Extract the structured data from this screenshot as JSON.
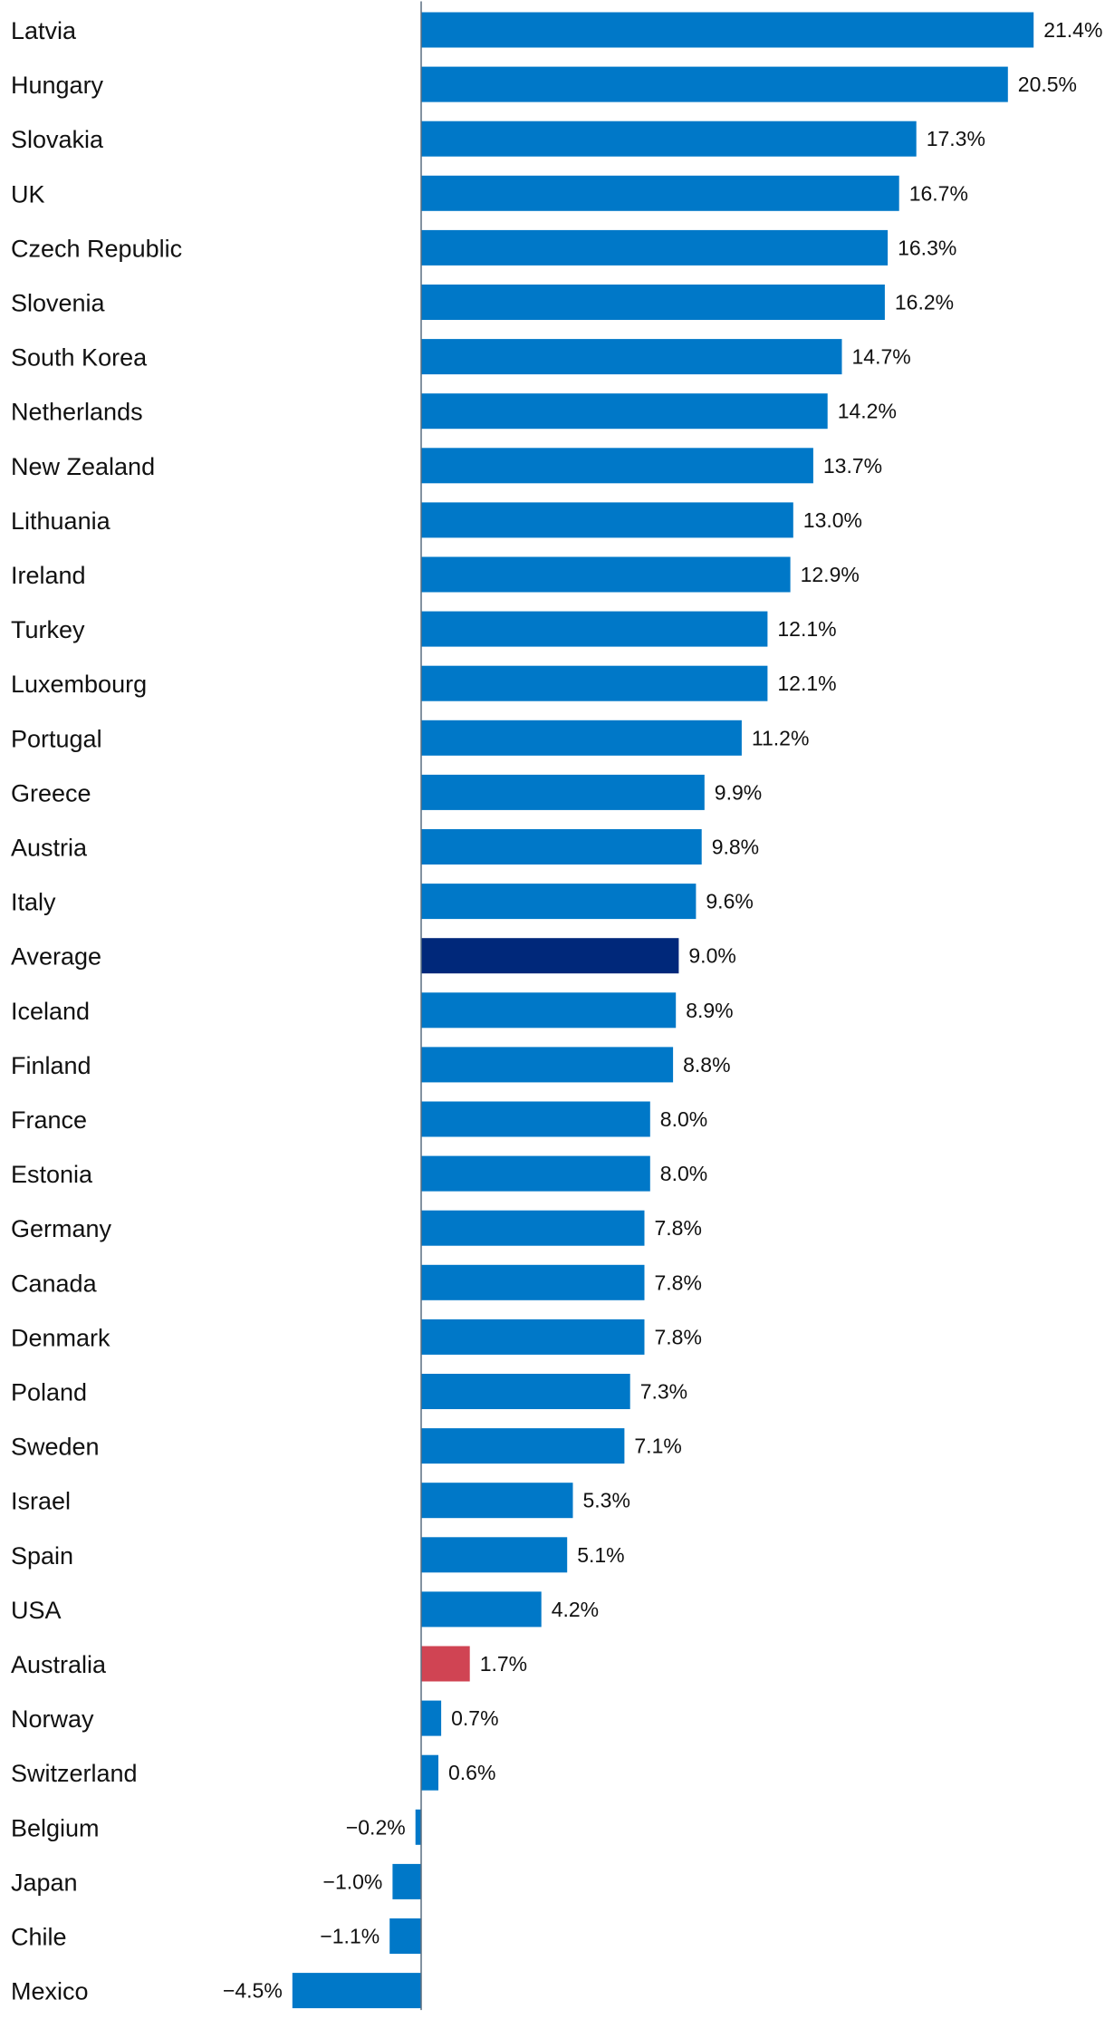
{
  "chart_data": {
    "type": "bar",
    "orientation": "horizontal",
    "title": "",
    "xlabel": "",
    "ylabel": "",
    "grid": false,
    "legend": "none",
    "xlim": [
      -4.5,
      21.4
    ],
    "categories": [
      "Latvia",
      "Hungary",
      "Slovakia",
      "UK",
      "Czech Republic",
      "Slovenia",
      "South Korea",
      "Netherlands",
      "New Zealand",
      "Lithuania",
      "Ireland",
      "Turkey",
      "Luxembourg",
      "Portugal",
      "Greece",
      "Austria",
      "Italy",
      "Average",
      "Iceland",
      "Finland",
      "France",
      "Estonia",
      "Germany",
      "Canada",
      "Denmark",
      "Poland",
      "Sweden",
      "Israel",
      "Spain",
      "USA",
      "Australia",
      "Norway",
      "Switzerland",
      "Belgium",
      "Japan",
      "Chile",
      "Mexico"
    ],
    "values": [
      21.4,
      20.5,
      17.3,
      16.7,
      16.3,
      16.2,
      14.7,
      14.2,
      13.7,
      13.0,
      12.9,
      12.1,
      12.1,
      11.2,
      9.9,
      9.8,
      9.6,
      9.0,
      8.9,
      8.8,
      8.0,
      8.0,
      7.8,
      7.8,
      7.8,
      7.3,
      7.1,
      5.3,
      5.1,
      4.2,
      1.7,
      0.7,
      0.6,
      -0.2,
      -1.0,
      -1.1,
      -4.5
    ],
    "value_labels": [
      "21.4%",
      "20.5%",
      "17.3%",
      "16.7%",
      "16.3%",
      "16.2%",
      "14.7%",
      "14.2%",
      "13.7%",
      "13.0%",
      "12.9%",
      "12.1%",
      "12.1%",
      "11.2%",
      "9.9%",
      "9.8%",
      "9.6%",
      "9.0%",
      "8.9%",
      "8.8%",
      "8.0%",
      "8.0%",
      "7.8%",
      "7.8%",
      "7.8%",
      "7.3%",
      "7.1%",
      "5.3%",
      "5.1%",
      "4.2%",
      "1.7%",
      "0.7%",
      "0.6%",
      "−0.2%",
      "−1.0%",
      "−1.1%",
      "−4.5%"
    ],
    "colors": {
      "default": "#0078C8",
      "highlight_average": "#00287A",
      "highlight_australia": "#D04453",
      "axis": "#5A6E80"
    },
    "highlights": {
      "Average": "highlight_average",
      "Australia": "highlight_australia"
    }
  }
}
